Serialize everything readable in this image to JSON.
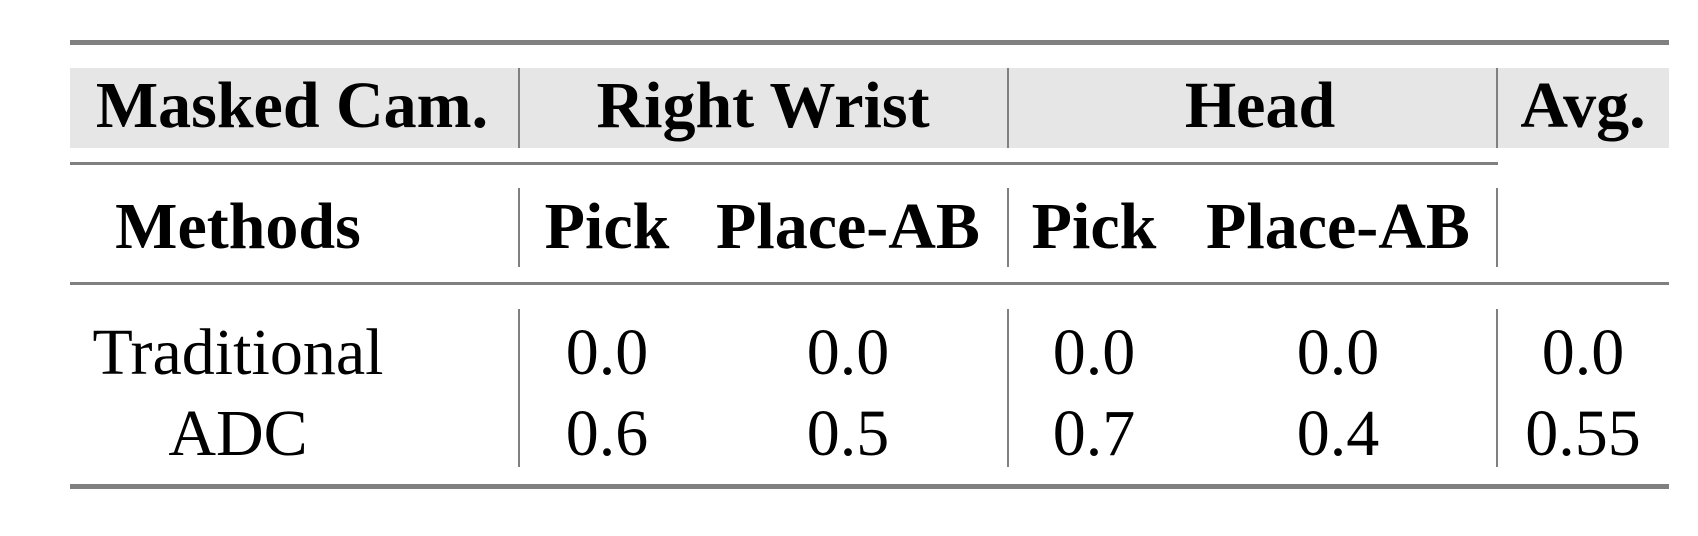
{
  "table": {
    "header_row1": {
      "masked_cam": "Masked Cam.",
      "group1": "Right Wrist",
      "group2": "Head",
      "avg": "Avg."
    },
    "header_row2": {
      "methods": "Methods",
      "cols": [
        "Pick",
        "Place-AB",
        "Pick",
        "Place-AB"
      ]
    },
    "rows": [
      {
        "method": "Traditional",
        "values": [
          "0.0",
          "0.0",
          "0.0",
          "0.0"
        ],
        "avg": "0.0"
      },
      {
        "method": "ADC",
        "values": [
          "0.6",
          "0.5",
          "0.7",
          "0.4"
        ],
        "avg": "0.55"
      }
    ],
    "colors": {
      "header_shade": "#e6e6e6",
      "rules": "#808080"
    }
  }
}
